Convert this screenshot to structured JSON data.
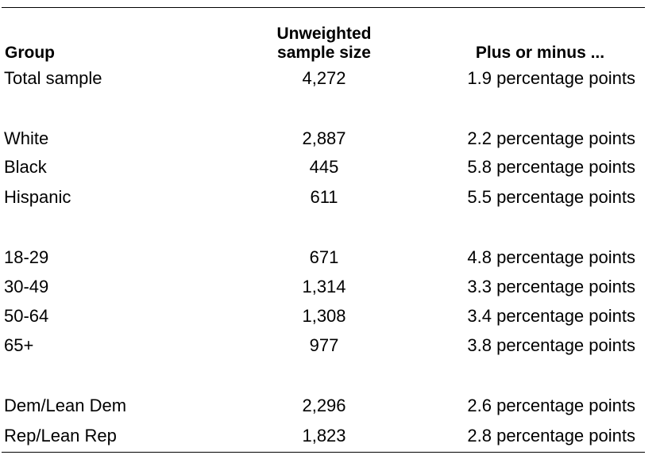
{
  "header": {
    "group": "Group",
    "sample_line1": "Unweighted",
    "sample_line2": "sample size",
    "moe": "Plus or minus ..."
  },
  "rows": [
    {
      "group": "Total sample",
      "size": "4,272",
      "moe": "1.9 percentage points"
    },
    {
      "group": "White",
      "size": "2,887",
      "moe": "2.2 percentage points"
    },
    {
      "group": "Black",
      "size": "445",
      "moe": "5.8 percentage points"
    },
    {
      "group": "Hispanic",
      "size": "611",
      "moe": "5.5 percentage points"
    },
    {
      "group": "18-29",
      "size": "671",
      "moe": "4.8 percentage points"
    },
    {
      "group": "30-49",
      "size": "1,314",
      "moe": "3.3 percentage points"
    },
    {
      "group": "50-64",
      "size": "1,308",
      "moe": "3.4 percentage points"
    },
    {
      "group": "65+",
      "size": "977",
      "moe": "3.8 percentage points"
    },
    {
      "group": "Dem/Lean Dem",
      "size": "2,296",
      "moe": "2.6 percentage points"
    },
    {
      "group": "Rep/Lean Rep",
      "size": "1,823",
      "moe": "2.8 percentage points"
    }
  ]
}
